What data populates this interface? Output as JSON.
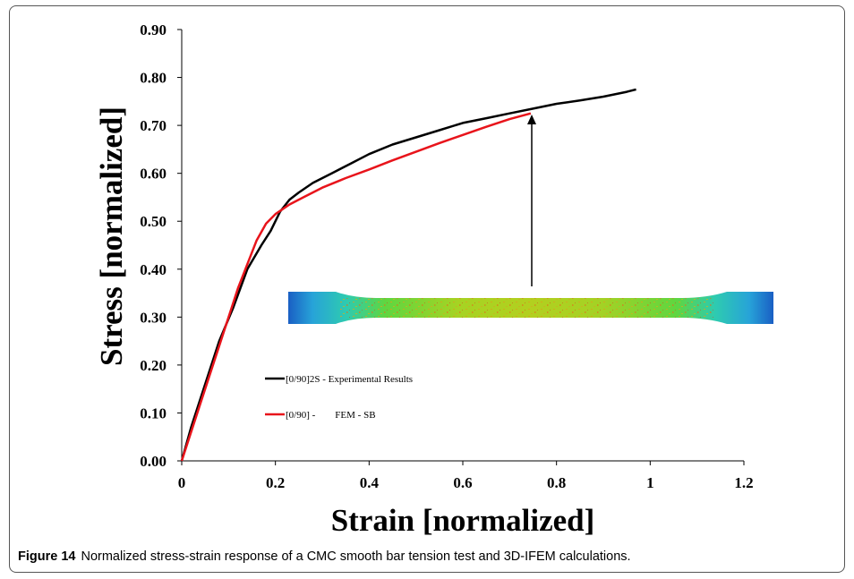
{
  "chart_data": {
    "type": "line",
    "xlabel": "Strain [normalized]",
    "ylabel": "Stress [normalized]",
    "xlim": [
      0,
      1.2
    ],
    "ylim": [
      0,
      0.9
    ],
    "x_ticks": [
      "0",
      "0.2",
      "0.4",
      "0.6",
      "0.8",
      "1",
      "1.2"
    ],
    "y_ticks": [
      "0.00",
      "0.10",
      "0.20",
      "0.30",
      "0.40",
      "0.50",
      "0.60",
      "0.70",
      "0.80",
      "0.90"
    ],
    "grid": false,
    "legend_position": "lower-center",
    "series": [
      {
        "name": "[0/90]2S - Experimental Results",
        "color": "#000000",
        "x": [
          0,
          0.02,
          0.05,
          0.08,
          0.11,
          0.14,
          0.17,
          0.19,
          0.21,
          0.23,
          0.25,
          0.28,
          0.32,
          0.36,
          0.4,
          0.45,
          0.5,
          0.55,
          0.6,
          0.65,
          0.7,
          0.75,
          0.8,
          0.85,
          0.9,
          0.95,
          0.97
        ],
        "y": [
          0,
          0.07,
          0.16,
          0.25,
          0.32,
          0.4,
          0.45,
          0.48,
          0.52,
          0.545,
          0.56,
          0.58,
          0.6,
          0.62,
          0.64,
          0.66,
          0.675,
          0.69,
          0.705,
          0.715,
          0.725,
          0.735,
          0.745,
          0.752,
          0.76,
          0.77,
          0.775
        ]
      },
      {
        "name": "[0/90] -        FEM - SB",
        "color": "#e8141b",
        "x": [
          0,
          0.04,
          0.08,
          0.12,
          0.16,
          0.18,
          0.2,
          0.23,
          0.26,
          0.3,
          0.35,
          0.4,
          0.45,
          0.5,
          0.55,
          0.6,
          0.65,
          0.7,
          0.745
        ],
        "y": [
          0,
          0.12,
          0.24,
          0.36,
          0.46,
          0.495,
          0.515,
          0.535,
          0.55,
          0.57,
          0.59,
          0.608,
          0.627,
          0.645,
          0.663,
          0.68,
          0.697,
          0.713,
          0.725
        ]
      }
    ]
  },
  "caption": {
    "label": "Figure 14",
    "text": "Normalized stress-strain response of a CMC smooth bar tension test and 3D-IFEM calculations."
  }
}
